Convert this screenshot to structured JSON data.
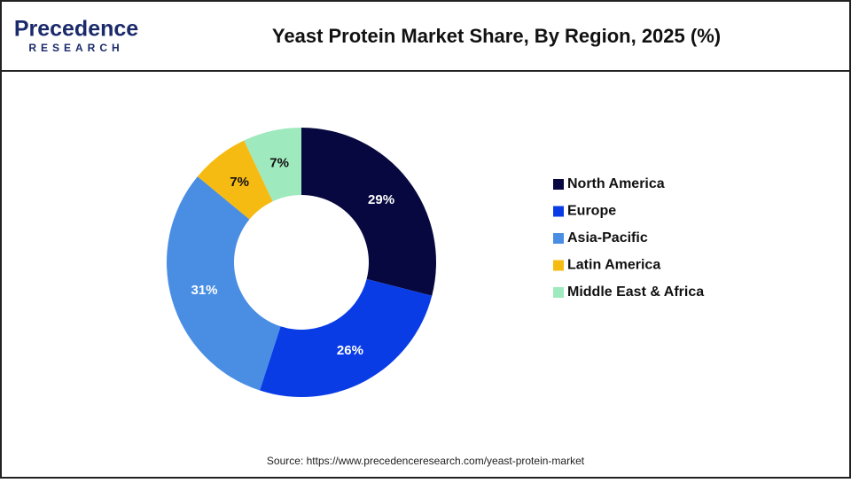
{
  "logo": {
    "name": "Precedence",
    "sub": "RESEARCH"
  },
  "chart_data": {
    "type": "donut",
    "title": "Yeast Protein Market Share, By Region, 2025 (%)",
    "categories": [
      "North America",
      "Europe",
      "Asia-Pacific",
      "Latin America",
      "Middle East & Africa"
    ],
    "values": [
      29,
      26,
      31,
      7,
      7
    ],
    "value_labels": [
      "29%",
      "26%",
      "31%",
      "7%",
      "7%"
    ],
    "colors": [
      "#07083f",
      "#0a3ce6",
      "#4a8ee4",
      "#f6bb12",
      "#9ee9bd"
    ],
    "source": "Source: https://www.precedenceresearch.com/yeast-protein-market"
  }
}
